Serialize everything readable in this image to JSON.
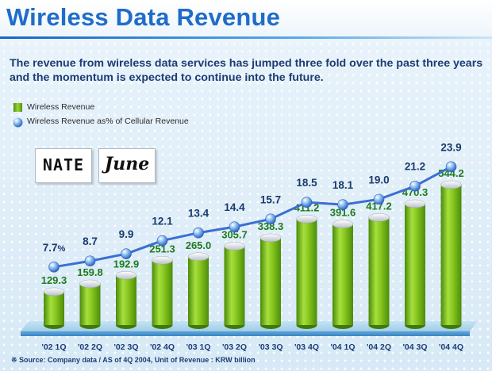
{
  "title": "Wireless Data Revenue",
  "subtitle": "The revenue from wireless data services has jumped three fold over the past three years and the momentum is expected to continue into the future.",
  "legend": {
    "bar_label": "Wireless Revenue",
    "line_label": "Wireless Revenue as% of Cellular Revenue"
  },
  "logos": {
    "nate": "NATE",
    "june": "June"
  },
  "footnote": "※ Source: Company data / AS of 4Q 2004, Unit of Revenue : KRW billion",
  "colors": {
    "title": "#1f6dc9",
    "bar": "#77bd14",
    "line": "#3d6fd3",
    "label": "#1d7a1d"
  },
  "chart_data": {
    "type": "bar",
    "categories": [
      "'02 1Q",
      "'02 2Q",
      "'02 3Q",
      "'02 4Q",
      "'03 1Q",
      "'03 2Q",
      "'03 3Q",
      "'03 4Q",
      "'04 1Q",
      "'04 2Q",
      "'04 3Q",
      "'04 4Q"
    ],
    "series": [
      {
        "name": "Wireless Revenue",
        "type": "bar",
        "unit": "KRW billion",
        "values": [
          129.3,
          159.8,
          192.9,
          251.3,
          265.0,
          305.7,
          338.3,
          411.2,
          391.6,
          417.2,
          470.3,
          544.2
        ]
      },
      {
        "name": "Wireless Revenue as% of Cellular Revenue",
        "type": "line",
        "unit": "%",
        "values": [
          7.7,
          8.7,
          9.9,
          12.1,
          13.4,
          14.4,
          15.7,
          18.5,
          18.1,
          19.0,
          21.2,
          23.9
        ]
      }
    ],
    "value_labels": [
      "129.3",
      "159.8",
      "192.9",
      "251.3",
      "265.0",
      "305.7",
      "338.3",
      "411.2",
      "391.6",
      "417.2",
      "470.3",
      "544.2"
    ],
    "percent_labels": [
      "7.7",
      "8.7",
      "9.9",
      "12.1",
      "13.4",
      "14.4",
      "15.7",
      "18.5",
      "18.1",
      "19.0",
      "21.2",
      "23.9"
    ],
    "percent_suffix": "%"
  }
}
